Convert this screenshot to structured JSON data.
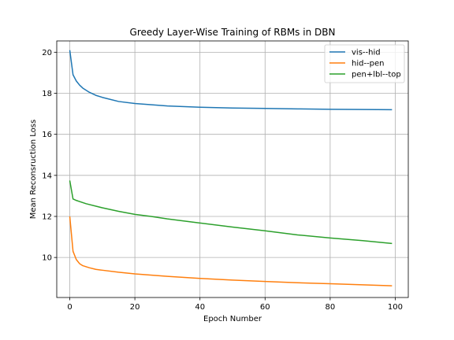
{
  "chart_data": {
    "type": "line",
    "title": "Greedy Layer-Wise Training of RBMs in DBN",
    "xlabel": "Epoch Number",
    "ylabel": "Mean Reconsruction Loss",
    "xlim": [
      -4,
      104
    ],
    "ylim": [
      8.05,
      20.55
    ],
    "xticks": [
      0,
      20,
      40,
      60,
      80,
      100
    ],
    "yticks": [
      10,
      12,
      14,
      16,
      18,
      20
    ],
    "grid": true,
    "legend_position": "top-right",
    "series": [
      {
        "name": "vis--hid",
        "color": "#1f77b4",
        "x": [
          0,
          1,
          2,
          3,
          4,
          6,
          8,
          10,
          15,
          20,
          30,
          40,
          50,
          60,
          70,
          80,
          90,
          99
        ],
        "y": [
          20.1,
          18.9,
          18.6,
          18.4,
          18.25,
          18.05,
          17.9,
          17.8,
          17.6,
          17.5,
          17.38,
          17.32,
          17.28,
          17.26,
          17.24,
          17.22,
          17.21,
          17.2
        ]
      },
      {
        "name": "hid--pen",
        "color": "#ff7f0e",
        "x": [
          0,
          1,
          2,
          3,
          4,
          6,
          8,
          10,
          15,
          20,
          30,
          40,
          50,
          60,
          70,
          80,
          90,
          99
        ],
        "y": [
          12.0,
          10.3,
          9.9,
          9.7,
          9.6,
          9.5,
          9.42,
          9.38,
          9.28,
          9.2,
          9.08,
          8.98,
          8.9,
          8.83,
          8.77,
          8.72,
          8.67,
          8.62
        ]
      },
      {
        "name": "pen+lbl--top",
        "color": "#2ca02c",
        "x": [
          0,
          1,
          2,
          5,
          10,
          15,
          20,
          25,
          30,
          40,
          50,
          60,
          70,
          80,
          90,
          99
        ],
        "y": [
          13.75,
          12.85,
          12.78,
          12.62,
          12.42,
          12.25,
          12.1,
          12.0,
          11.88,
          11.68,
          11.48,
          11.3,
          11.1,
          10.95,
          10.82,
          10.68
        ]
      }
    ]
  }
}
